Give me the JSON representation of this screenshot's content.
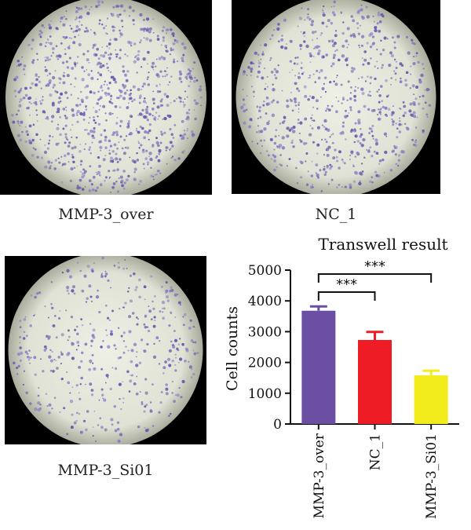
{
  "panels": [
    {
      "caption": "MMP-3_over",
      "density": 1.0
    },
    {
      "caption": "NC_1",
      "density": 0.75
    },
    {
      "caption": "MMP-3_Si01",
      "density": 0.45
    }
  ],
  "chart_data": {
    "type": "bar",
    "title": "Transwell result",
    "xlabel": "",
    "ylabel": "Cell counts",
    "categories": [
      "MMP-3_over",
      "NC_1",
      "MMP-3_Si01"
    ],
    "values": [
      3680,
      2730,
      1580
    ],
    "errors": [
      140,
      260,
      150
    ],
    "colors": [
      "#6a4fa3",
      "#ee1c24",
      "#f2ec1c"
    ],
    "ylim": [
      0,
      5000
    ],
    "yticks": [
      0,
      1000,
      2000,
      3000,
      4000,
      5000
    ],
    "significance": [
      {
        "from": "MMP-3_over",
        "to": "NC_1",
        "label": "***"
      },
      {
        "from": "MMP-3_over",
        "to": "MMP-3_Si01",
        "label": "***"
      }
    ]
  }
}
